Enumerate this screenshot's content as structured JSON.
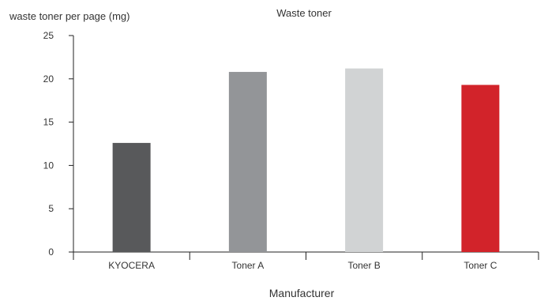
{
  "chart_data": {
    "type": "bar",
    "title": "Waste toner",
    "ylabel": "waste toner per page (mg)",
    "xlabel": "Manufacturer",
    "categories": [
      "KYOCERA",
      "Toner A",
      "Toner B",
      "Toner C"
    ],
    "series": [
      {
        "values": [
          12.6,
          20.8,
          21.2,
          19.3
        ],
        "colors": [
          "#58595b",
          "#939598",
          "#d1d3d4",
          "#d2232a"
        ]
      }
    ],
    "ylim": [
      0,
      25
    ],
    "yticks": [
      0,
      5,
      10,
      15,
      20,
      25
    ],
    "grid": false,
    "legend": "none"
  }
}
